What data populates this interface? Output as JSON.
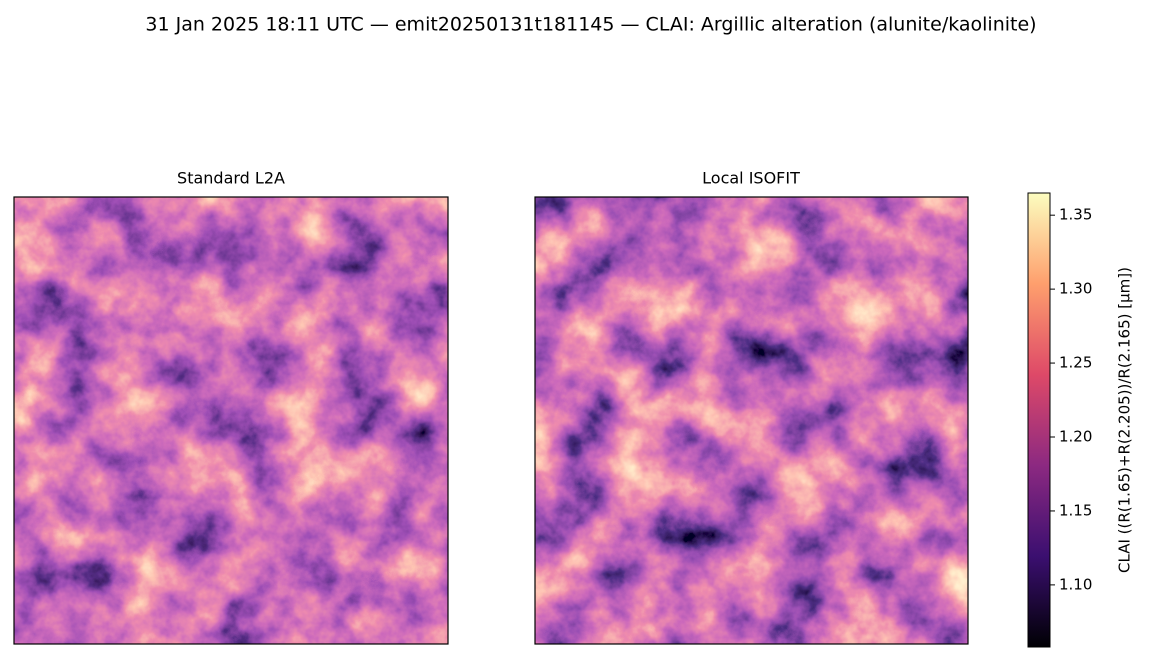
{
  "chart_data": {
    "type": "image",
    "title": "31 Jan 2025 18:11 UTC — emit20250131t181145 — CLAI: Argillic alteration (alunite/kaolinite)",
    "panels": [
      {
        "title": "Standard L2A"
      },
      {
        "title": "Local ISOFIT"
      }
    ],
    "colorbar_label": "CLAI  ((R(1.65)+R(2.205))/R(2.165)  [µm])",
    "clim": [
      1.058,
      1.365
    ],
    "cticks": [
      {
        "value": 1.1,
        "label": "1.10"
      },
      1.15,
      {
        "value": 1.2,
        "label": "1.20"
      },
      1.25,
      {
        "value": 1.3,
        "label": "1.30"
      },
      1.35
    ],
    "colormap": [
      "#000004",
      "#3b0f70",
      "#8c2981",
      "#de4968",
      "#fe9f6d",
      "#fcfdbf"
    ]
  }
}
